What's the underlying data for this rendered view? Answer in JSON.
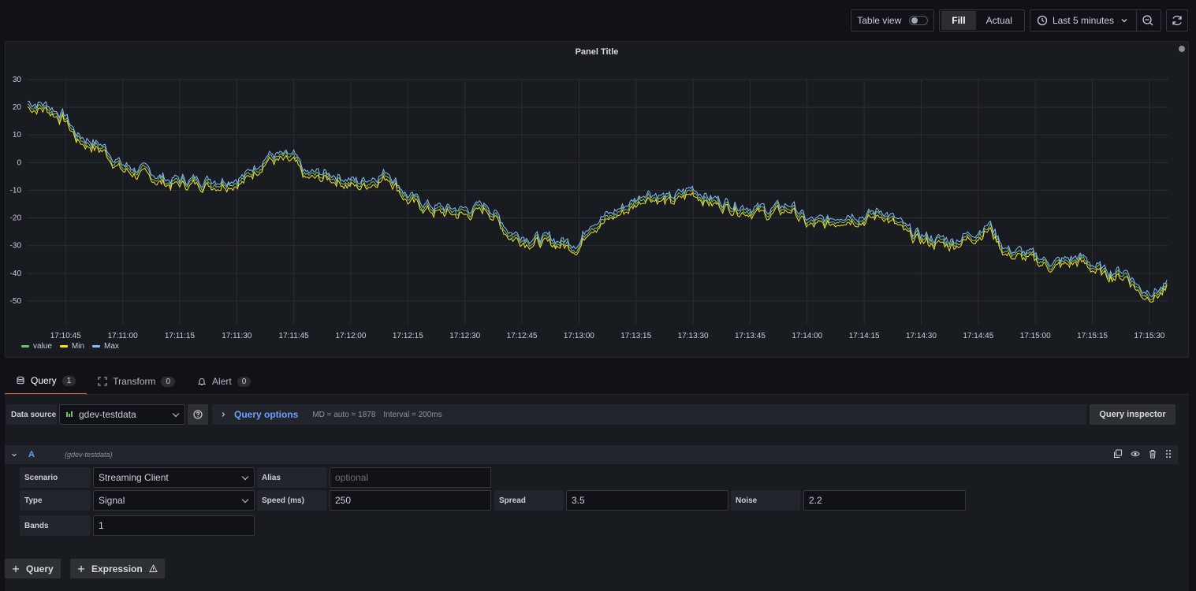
{
  "toolbar": {
    "table_view_label": "Table view",
    "fill_label": "Fill",
    "actual_label": "Actual",
    "time_range": "Last 5 minutes"
  },
  "panel": {
    "title": "Panel Title"
  },
  "chart_data": {
    "type": "line",
    "title": "Panel Title",
    "ylim": [
      -60,
      30
    ],
    "y_ticks": [
      "30",
      "20",
      "10",
      "0",
      "-10",
      "-20",
      "-30",
      "-40",
      "-50"
    ],
    "x_ticks": [
      "17:10:45",
      "17:11:00",
      "17:11:15",
      "17:11:30",
      "17:11:45",
      "17:12:00",
      "17:12:15",
      "17:12:30",
      "17:12:45",
      "17:13:00",
      "17:13:15",
      "17:13:30",
      "17:13:45",
      "17:14:00",
      "17:14:15",
      "17:14:30",
      "17:14:45",
      "17:15:00",
      "17:15:15",
      "17:15:30"
    ],
    "x_range": [
      "17:10:35",
      "17:15:35"
    ],
    "grid": true,
    "legend_placement": "bottom-left",
    "series": [
      {
        "name": "value",
        "color": "#73bf69"
      },
      {
        "name": "Min",
        "color": "#fade2a"
      },
      {
        "name": "Max",
        "color": "#8ab8ff"
      }
    ],
    "trend": [
      {
        "t": "17:10:35",
        "v": 21
      },
      {
        "t": "17:10:40",
        "v": 20
      },
      {
        "t": "17:10:45",
        "v": 16
      },
      {
        "t": "17:10:48",
        "v": 9
      },
      {
        "t": "17:10:55",
        "v": 5
      },
      {
        "t": "17:11:00",
        "v": -2
      },
      {
        "t": "17:11:06",
        "v": -4
      },
      {
        "t": "17:11:12",
        "v": -7
      },
      {
        "t": "17:11:18",
        "v": -7
      },
      {
        "t": "17:11:25",
        "v": -7
      },
      {
        "t": "17:11:32",
        "v": -6
      },
      {
        "t": "17:11:38",
        "v": 2
      },
      {
        "t": "17:11:45",
        "v": 1
      },
      {
        "t": "17:11:48",
        "v": -5
      },
      {
        "t": "17:11:55",
        "v": -5
      },
      {
        "t": "17:12:02",
        "v": -8
      },
      {
        "t": "17:12:10",
        "v": -4
      },
      {
        "t": "17:12:15",
        "v": -13
      },
      {
        "t": "17:12:22",
        "v": -17
      },
      {
        "t": "17:12:30",
        "v": -18
      },
      {
        "t": "17:12:36",
        "v": -16
      },
      {
        "t": "17:12:42",
        "v": -26
      },
      {
        "t": "17:12:48",
        "v": -28
      },
      {
        "t": "17:12:55",
        "v": -29
      },
      {
        "t": "17:13:00",
        "v": -30
      },
      {
        "t": "17:13:03",
        "v": -22
      },
      {
        "t": "17:13:08",
        "v": -20
      },
      {
        "t": "17:13:13",
        "v": -16
      },
      {
        "t": "17:13:18",
        "v": -11
      },
      {
        "t": "17:13:24",
        "v": -14
      },
      {
        "t": "17:13:30",
        "v": -10
      },
      {
        "t": "17:13:35",
        "v": -14
      },
      {
        "t": "17:13:42",
        "v": -16
      },
      {
        "t": "17:13:50",
        "v": -18
      },
      {
        "t": "17:13:56",
        "v": -16
      },
      {
        "t": "17:14:00",
        "v": -22
      },
      {
        "t": "17:14:05",
        "v": -22
      },
      {
        "t": "17:14:10",
        "v": -19
      },
      {
        "t": "17:14:15",
        "v": -20
      },
      {
        "t": "17:14:20",
        "v": -18
      },
      {
        "t": "17:14:27",
        "v": -26
      },
      {
        "t": "17:14:32",
        "v": -28
      },
      {
        "t": "17:14:38",
        "v": -29
      },
      {
        "t": "17:14:44",
        "v": -26
      },
      {
        "t": "17:14:48",
        "v": -23
      },
      {
        "t": "17:14:52",
        "v": -32
      },
      {
        "t": "17:14:58",
        "v": -34
      },
      {
        "t": "17:15:05",
        "v": -37
      },
      {
        "t": "17:15:12",
        "v": -35
      },
      {
        "t": "17:15:18",
        "v": -40
      },
      {
        "t": "17:15:24",
        "v": -40
      },
      {
        "t": "17:15:28",
        "v": -47
      },
      {
        "t": "17:15:32",
        "v": -47
      },
      {
        "t": "17:15:35",
        "v": -45
      }
    ]
  },
  "tabs": [
    {
      "label": "Query",
      "count": "1"
    },
    {
      "label": "Transform",
      "count": "0"
    },
    {
      "label": "Alert",
      "count": "0"
    }
  ],
  "datasource": {
    "label": "Data source",
    "value": "gdev-testdata",
    "query_options_label": "Query options",
    "md": "MD = auto = 1878",
    "interval": "Interval = 200ms",
    "inspector_label": "Query inspector"
  },
  "query": {
    "letter": "A",
    "datasource": "(gdev-testdata)",
    "fields": {
      "scenario_label": "Scenario",
      "scenario_value": "Streaming Client",
      "alias_label": "Alias",
      "alias_placeholder": "optional",
      "type_label": "Type",
      "type_value": "Signal",
      "speed_label": "Speed (ms)",
      "speed_value": "250",
      "spread_label": "Spread",
      "spread_value": "3.5",
      "noise_label": "Noise",
      "noise_value": "2.2",
      "bands_label": "Bands",
      "bands_value": "1"
    }
  },
  "buttons": {
    "add_query": "Query",
    "add_expression": "Expression"
  }
}
